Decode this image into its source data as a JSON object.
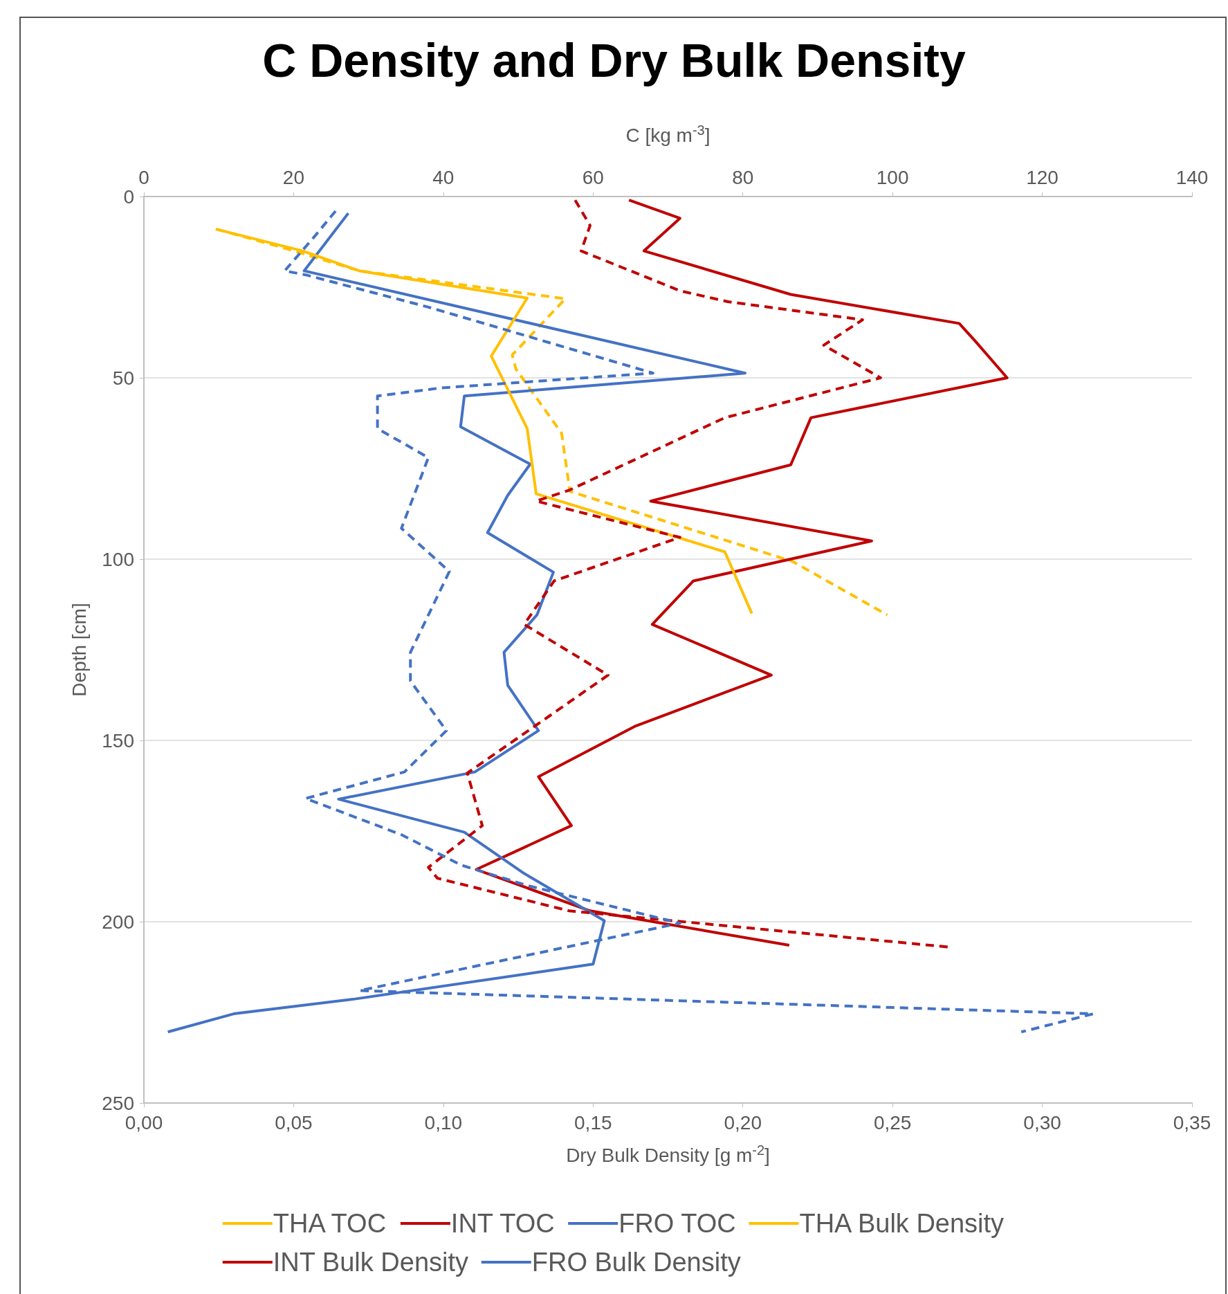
{
  "chart_data": {
    "type": "line",
    "title": "C Density and Dry Bulk Density",
    "xlabel": "Dry Bulk Density [g m$^{-2}$]",
    "x2label": "C [kg m$^{-3}$]",
    "ylabel": "Depth [cm]",
    "xlim": [
      0,
      0.35
    ],
    "xticks": [
      {
        "value": 0,
        "label": "0,00"
      },
      {
        "value": 0.05,
        "label": "0,05"
      },
      {
        "value": 0.1,
        "label": "0,10"
      },
      {
        "value": 0.15,
        "label": "0,15"
      },
      {
        "value": 0.2,
        "label": "0,20"
      },
      {
        "value": 0.25,
        "label": "0,25"
      },
      {
        "value": 0.3,
        "label": "0,30"
      },
      {
        "value": 0.35,
        "label": "0,35"
      }
    ],
    "x2lim": [
      0,
      140
    ],
    "x2ticks": [
      0,
      20,
      40,
      60,
      80,
      100,
      120,
      140
    ],
    "ylim": [
      250,
      0
    ],
    "yticks": [
      0,
      50,
      100,
      150,
      200,
      250
    ],
    "grid": "y",
    "legend": "bottom",
    "marker": "none",
    "series": [
      {
        "name": "THA TOC",
        "color": "#ffc000",
        "line_style": "dashed",
        "axis": "x2",
        "x": [
          9.7,
          19.4,
          28.8,
          56.3,
          49.2,
          49.7,
          55.8,
          56.9,
          86.6,
          99.3
        ],
        "values": [
          9,
          14.6,
          20.5,
          28.2,
          43.7,
          47.6,
          65.3,
          81.3,
          100.6,
          115.4
        ]
      },
      {
        "name": "INT TOC",
        "color": "#c00000",
        "line_style": "solid",
        "axis": "x2",
        "x": [
          64.8,
          71.6,
          66.8,
          86.4,
          108.9,
          111.1,
          115.3,
          89.1,
          86.4,
          67.7,
          97.2,
          73.4,
          67.9,
          83.8,
          65.7,
          52.7,
          57.1,
          44.4,
          59.6,
          86.2
        ],
        "values": [
          1,
          6,
          15,
          27,
          35,
          40,
          50,
          61,
          74,
          84,
          95,
          106,
          118,
          132,
          146,
          160,
          173.5,
          185.6,
          197,
          206.5
        ]
      },
      {
        "name": "FRO TOC",
        "color": "#4472c4",
        "line_style": "solid",
        "axis": "x2",
        "x": [
          27.3,
          21.4,
          80.3,
          42.8,
          42.3,
          51.6,
          48.6,
          45.9,
          54.7,
          52.5,
          48.1,
          48.6,
          52.7,
          44.2,
          26,
          42.8,
          50.8,
          61.5,
          60,
          28.2,
          12,
          3.2
        ],
        "values": [
          4.6,
          20.5,
          48.7,
          55,
          63.5,
          73.8,
          82.4,
          92.7,
          103.6,
          115.4,
          125.7,
          134.8,
          147.3,
          158.7,
          166.2,
          175.3,
          186.7,
          199.7,
          211.7,
          221.3,
          225.4,
          230.4
        ]
      },
      {
        "name": "THA Bulk Density",
        "color": "#ffc000",
        "line_style": "solid",
        "x": [
          0.024,
          0.053,
          0.072,
          0.128,
          0.116,
          0.128,
          0.131,
          0.194,
          0.203
        ],
        "values": [
          9,
          15,
          20.5,
          28,
          44,
          64,
          82,
          98,
          115
        ]
      },
      {
        "name": "INT Bulk Density",
        "color": "#c00000",
        "line_style": "dashed",
        "x": [
          0.144,
          0.149,
          0.146,
          0.179,
          0.195,
          0.24,
          0.227,
          0.246,
          0.194,
          0.142,
          0.131,
          0.179,
          0.137,
          0.127,
          0.155,
          0.108,
          0.113,
          0.095,
          0.098,
          0.142,
          0.269
        ],
        "values": [
          1,
          8,
          15,
          26,
          29,
          34,
          41,
          50,
          61,
          81,
          84,
          94,
          106,
          118,
          132,
          159,
          173.5,
          185,
          188,
          197,
          207
        ]
      },
      {
        "name": "FRO Bulk Density",
        "color": "#4472c4",
        "line_style": "dashed",
        "x": [
          0.064,
          0.057,
          0.047,
          0.054,
          0.095,
          0.17,
          0.099,
          0.078,
          0.078,
          0.095,
          0.086,
          0.102,
          0.089,
          0.089,
          0.101,
          0.087,
          0.054,
          0.086,
          0.106,
          0.128,
          0.179,
          0.072,
          0.317,
          0.293
        ],
        "values": [
          4,
          11,
          20.5,
          21.6,
          30.5,
          48.7,
          52.8,
          55,
          64,
          72,
          91.5,
          103.4,
          125.7,
          133.6,
          147.3,
          158.7,
          166,
          176,
          184.4,
          190,
          200.4,
          219,
          225.4,
          230.4
        ]
      }
    ]
  }
}
